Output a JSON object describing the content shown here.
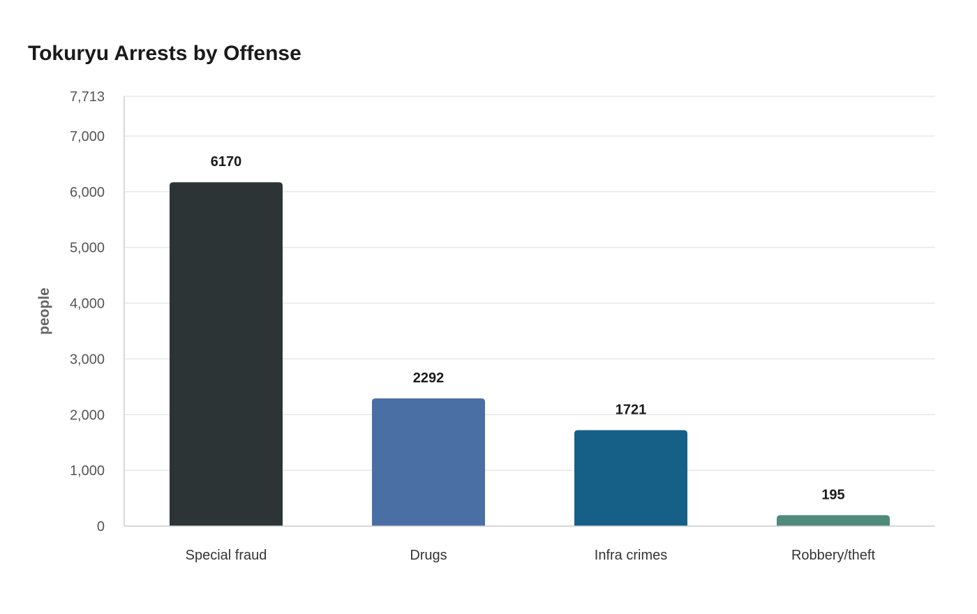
{
  "chart_data": {
    "type": "bar",
    "title": "Tokuryu Arrests by Offense",
    "xlabel": "",
    "ylabel": "people",
    "categories": [
      "Special fraud",
      "Drugs",
      "Infra crimes",
      "Robbery/theft"
    ],
    "values": [
      6170,
      2292,
      1721,
      195
    ],
    "colors": [
      "#2d3436",
      "#4a6fa5",
      "#166088",
      "#4f8a7a"
    ],
    "ylim": [
      0,
      7713
    ],
    "yticks": [
      0,
      1000,
      2000,
      3000,
      4000,
      5000,
      6000,
      7000,
      7713
    ],
    "ytick_labels": [
      "0",
      "1,000",
      "2,000",
      "3,000",
      "4,000",
      "5,000",
      "6,000",
      "7,000",
      "7,713"
    ],
    "data_labels": [
      "6170",
      "2292",
      "1721",
      "195"
    ],
    "grid": true,
    "legend": "none"
  }
}
